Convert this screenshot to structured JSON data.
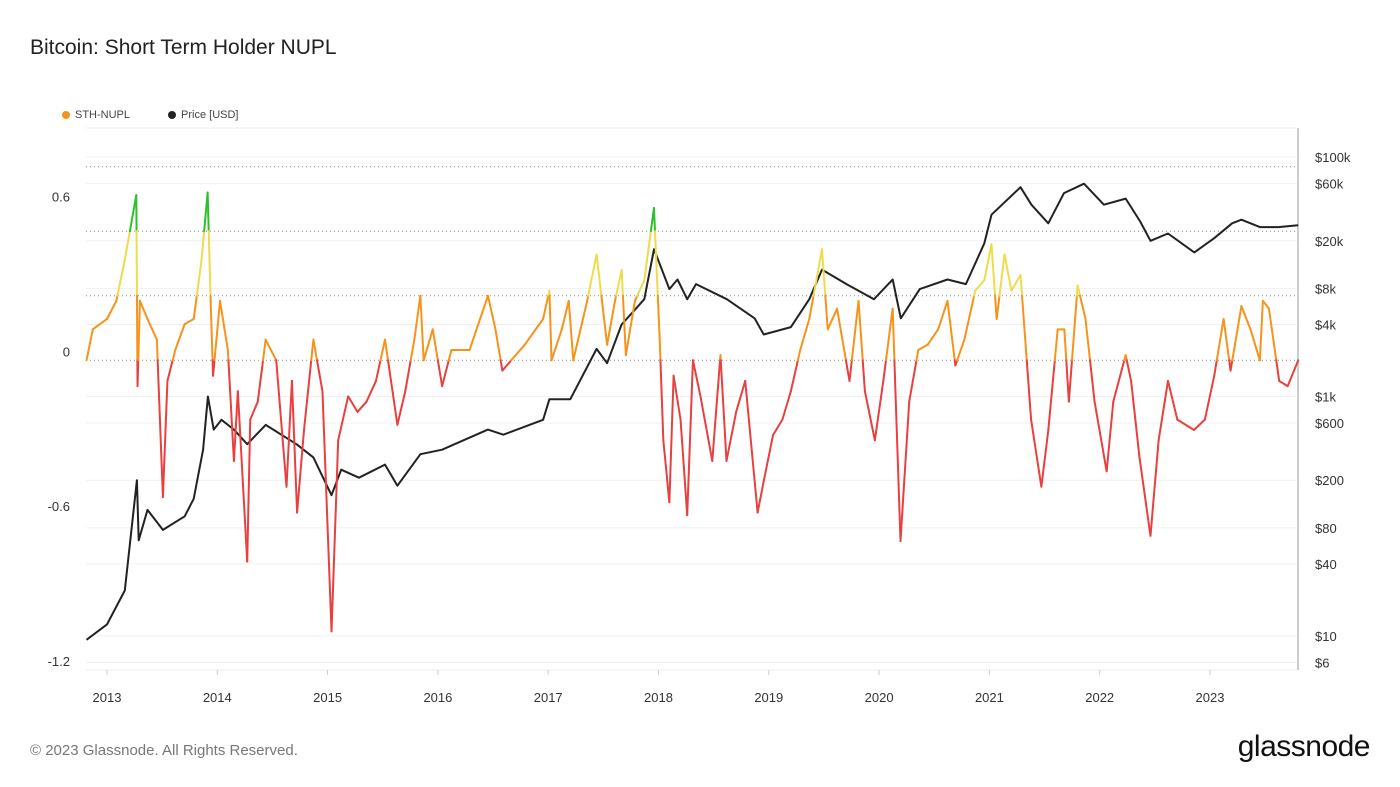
{
  "title": "Bitcoin: Short Term Holder NUPL",
  "footer": "© 2023 Glassnode. All Rights Reserved.",
  "logo": "glassnode",
  "legend": [
    {
      "label": "STH-NUPL",
      "color": "#f7931a"
    },
    {
      "label": "Price [USD]",
      "color": "#222222"
    }
  ],
  "chart_data": {
    "type": "line",
    "title": "Bitcoin: Short Term Holder NUPL",
    "x_ticks": [
      "2013",
      "2014",
      "2015",
      "2016",
      "2017",
      "2018",
      "2019",
      "2020",
      "2021",
      "2022",
      "2023"
    ],
    "y_left": {
      "ticks": [
        0.6,
        0,
        -0.6,
        -1.2
      ],
      "tick_labels": [
        "0.6",
        "0",
        "-0.6",
        "-1.2"
      ],
      "range": [
        -1.2,
        0.9
      ],
      "reference_lines": [
        0.75,
        0.5,
        0.25,
        0
      ]
    },
    "y_right": {
      "scale": "log",
      "ticks": [
        100000,
        60000,
        20000,
        8000,
        4000,
        1000,
        600,
        200,
        80,
        40,
        10,
        6
      ],
      "tick_labels": [
        "$100k",
        "$60k",
        "$20k",
        "$8k",
        "$4k",
        "$1k",
        "$600",
        "$200",
        "$80",
        "$40",
        "$10",
        "$6"
      ],
      "range": [
        5.2,
        175000
      ]
    },
    "x_range": [
      "2012-10-20",
      "2023-10-20"
    ],
    "grid": true,
    "legend_position": "top-left",
    "nupl_colors": {
      "below_0": "#e8403e",
      "0_to_0.25": "#f7931a",
      "0.25_to_0.5": "#eedc4c",
      "above_0.5": "#2cc12a"
    },
    "series": [
      {
        "name": "STH-NUPL",
        "axis": "left",
        "points": [
          [
            "2012-10-25",
            0.0
          ],
          [
            "2012-11-15",
            0.12
          ],
          [
            "2013-01-01",
            0.16
          ],
          [
            "2013-02-01",
            0.23
          ],
          [
            "2013-03-01",
            0.39
          ],
          [
            "2013-04-08",
            0.64
          ],
          [
            "2013-04-12",
            -0.1
          ],
          [
            "2013-04-20",
            0.23
          ],
          [
            "2013-05-15",
            0.16
          ],
          [
            "2013-06-15",
            0.08
          ],
          [
            "2013-07-05",
            -0.53
          ],
          [
            "2013-07-20",
            -0.08
          ],
          [
            "2013-08-15",
            0.04
          ],
          [
            "2013-09-15",
            0.14
          ],
          [
            "2013-10-15",
            0.16
          ],
          [
            "2013-11-10",
            0.39
          ],
          [
            "2013-11-30",
            0.65
          ],
          [
            "2013-12-10",
            0.23
          ],
          [
            "2013-12-18",
            -0.06
          ],
          [
            "2014-01-10",
            0.23
          ],
          [
            "2014-02-05",
            0.04
          ],
          [
            "2014-02-25",
            -0.39
          ],
          [
            "2014-03-10",
            -0.12
          ],
          [
            "2014-04-10",
            -0.78
          ],
          [
            "2014-04-20",
            -0.23
          ],
          [
            "2014-05-15",
            -0.16
          ],
          [
            "2014-06-10",
            0.08
          ],
          [
            "2014-07-15",
            0.0
          ],
          [
            "2014-08-18",
            -0.49
          ],
          [
            "2014-09-05",
            -0.08
          ],
          [
            "2014-09-22",
            -0.59
          ],
          [
            "2014-10-15",
            -0.27
          ],
          [
            "2014-11-15",
            0.08
          ],
          [
            "2014-12-15",
            -0.12
          ],
          [
            "2015-01-14",
            -1.05
          ],
          [
            "2015-02-05",
            -0.31
          ],
          [
            "2015-03-10",
            -0.14
          ],
          [
            "2015-04-10",
            -0.2
          ],
          [
            "2015-05-10",
            -0.16
          ],
          [
            "2015-06-10",
            -0.08
          ],
          [
            "2015-07-10",
            0.08
          ],
          [
            "2015-08-20",
            -0.25
          ],
          [
            "2015-09-15",
            -0.12
          ],
          [
            "2015-10-15",
            0.08
          ],
          [
            "2015-11-04",
            0.25
          ],
          [
            "2015-11-15",
            0.0
          ],
          [
            "2015-12-15",
            0.12
          ],
          [
            "2016-01-15",
            -0.1
          ],
          [
            "2016-02-15",
            0.04
          ],
          [
            "2016-04-15",
            0.04
          ],
          [
            "2016-06-15",
            0.25
          ],
          [
            "2016-07-10",
            0.12
          ],
          [
            "2016-08-02",
            -0.04
          ],
          [
            "2016-09-15",
            0.02
          ],
          [
            "2016-10-15",
            0.06
          ],
          [
            "2016-12-15",
            0.16
          ],
          [
            "2017-01-05",
            0.27
          ],
          [
            "2017-01-12",
            0.0
          ],
          [
            "2017-02-15",
            0.12
          ],
          [
            "2017-03-10",
            0.23
          ],
          [
            "2017-03-25",
            0.0
          ],
          [
            "2017-05-10",
            0.23
          ],
          [
            "2017-06-10",
            0.41
          ],
          [
            "2017-07-15",
            0.06
          ],
          [
            "2017-08-10",
            0.23
          ],
          [
            "2017-09-01",
            0.35
          ],
          [
            "2017-09-15",
            0.02
          ],
          [
            "2017-10-15",
            0.23
          ],
          [
            "2017-11-15",
            0.31
          ],
          [
            "2017-12-17",
            0.59
          ],
          [
            "2018-01-05",
            0.08
          ],
          [
            "2018-01-17",
            -0.31
          ],
          [
            "2018-02-06",
            -0.55
          ],
          [
            "2018-02-20",
            -0.06
          ],
          [
            "2018-03-15",
            -0.23
          ],
          [
            "2018-04-06",
            -0.6
          ],
          [
            "2018-04-25",
            0.0
          ],
          [
            "2018-05-20",
            -0.14
          ],
          [
            "2018-06-28",
            -0.39
          ],
          [
            "2018-07-25",
            0.02
          ],
          [
            "2018-08-14",
            -0.39
          ],
          [
            "2018-09-15",
            -0.2
          ],
          [
            "2018-10-15",
            -0.08
          ],
          [
            "2018-11-25",
            -0.59
          ],
          [
            "2018-12-15",
            -0.47
          ],
          [
            "2019-01-15",
            -0.29
          ],
          [
            "2019-02-15",
            -0.23
          ],
          [
            "2019-03-15",
            -0.12
          ],
          [
            "2019-04-15",
            0.04
          ],
          [
            "2019-05-15",
            0.16
          ],
          [
            "2019-06-26",
            0.43
          ],
          [
            "2019-07-15",
            0.12
          ],
          [
            "2019-08-15",
            0.2
          ],
          [
            "2019-09-25",
            -0.08
          ],
          [
            "2019-10-25",
            0.23
          ],
          [
            "2019-11-15",
            -0.12
          ],
          [
            "2019-12-18",
            -0.31
          ],
          [
            "2020-01-15",
            -0.08
          ],
          [
            "2020-02-15",
            0.2
          ],
          [
            "2020-03-12",
            -0.7
          ],
          [
            "2020-04-10",
            -0.16
          ],
          [
            "2020-05-10",
            0.04
          ],
          [
            "2020-06-10",
            0.06
          ],
          [
            "2020-07-15",
            0.12
          ],
          [
            "2020-08-15",
            0.23
          ],
          [
            "2020-09-10",
            -0.02
          ],
          [
            "2020-10-10",
            0.08
          ],
          [
            "2020-11-15",
            0.27
          ],
          [
            "2020-12-15",
            0.31
          ],
          [
            "2021-01-08",
            0.45
          ],
          [
            "2021-01-25",
            0.16
          ],
          [
            "2021-02-20",
            0.41
          ],
          [
            "2021-03-15",
            0.27
          ],
          [
            "2021-04-14",
            0.33
          ],
          [
            "2021-05-19",
            -0.23
          ],
          [
            "2021-06-22",
            -0.49
          ],
          [
            "2021-07-15",
            -0.27
          ],
          [
            "2021-08-15",
            0.12
          ],
          [
            "2021-09-06",
            0.12
          ],
          [
            "2021-09-21",
            -0.16
          ],
          [
            "2021-10-20",
            0.29
          ],
          [
            "2021-11-15",
            0.16
          ],
          [
            "2021-12-15",
            -0.16
          ],
          [
            "2022-01-24",
            -0.43
          ],
          [
            "2022-02-15",
            -0.16
          ],
          [
            "2022-03-28",
            0.02
          ],
          [
            "2022-04-15",
            -0.08
          ],
          [
            "2022-05-12",
            -0.37
          ],
          [
            "2022-06-18",
            -0.68
          ],
          [
            "2022-07-15",
            -0.31
          ],
          [
            "2022-08-15",
            -0.08
          ],
          [
            "2022-09-15",
            -0.23
          ],
          [
            "2022-11-09",
            -0.27
          ],
          [
            "2022-12-15",
            -0.23
          ],
          [
            "2023-01-15",
            -0.06
          ],
          [
            "2023-02-15",
            0.16
          ],
          [
            "2023-03-10",
            -0.04
          ],
          [
            "2023-04-15",
            0.21
          ],
          [
            "2023-05-15",
            0.12
          ],
          [
            "2023-06-15",
            0.0
          ],
          [
            "2023-06-25",
            0.23
          ],
          [
            "2023-07-15",
            0.2
          ],
          [
            "2023-08-18",
            -0.08
          ],
          [
            "2023-09-15",
            -0.1
          ],
          [
            "2023-10-20",
            0.0
          ]
        ]
      },
      {
        "name": "Price [USD]",
        "axis": "right",
        "points": [
          [
            "2012-10-25",
            9.3
          ],
          [
            "2013-01-01",
            12.5
          ],
          [
            "2013-03-01",
            24
          ],
          [
            "2013-04-10",
            200
          ],
          [
            "2013-04-16",
            63
          ],
          [
            "2013-05-15",
            113
          ],
          [
            "2013-07-05",
            77
          ],
          [
            "2013-09-15",
            100
          ],
          [
            "2013-10-15",
            140
          ],
          [
            "2013-11-15",
            360
          ],
          [
            "2013-12-01",
            1000
          ],
          [
            "2013-12-20",
            530
          ],
          [
            "2014-01-15",
            640
          ],
          [
            "2014-02-25",
            530
          ],
          [
            "2014-04-10",
            400
          ],
          [
            "2014-06-10",
            580
          ],
          [
            "2014-09-20",
            400
          ],
          [
            "2014-11-15",
            310
          ],
          [
            "2015-01-14",
            150
          ],
          [
            "2015-02-15",
            245
          ],
          [
            "2015-04-15",
            210
          ],
          [
            "2015-07-10",
            270
          ],
          [
            "2015-08-20",
            180
          ],
          [
            "2015-11-04",
            330
          ],
          [
            "2016-01-15",
            360
          ],
          [
            "2016-06-15",
            530
          ],
          [
            "2016-08-05",
            480
          ],
          [
            "2016-12-15",
            640
          ],
          [
            "2017-01-05",
            950
          ],
          [
            "2017-03-15",
            950
          ],
          [
            "2017-06-10",
            2500
          ],
          [
            "2017-07-15",
            1900
          ],
          [
            "2017-09-01",
            4000
          ],
          [
            "2017-11-15",
            6500
          ],
          [
            "2017-12-17",
            17000
          ],
          [
            "2018-02-06",
            7900
          ],
          [
            "2018-03-05",
            9500
          ],
          [
            "2018-04-06",
            6500
          ],
          [
            "2018-05-05",
            8700
          ],
          [
            "2018-08-15",
            6500
          ],
          [
            "2018-11-15",
            4500
          ],
          [
            "2018-12-15",
            3300
          ],
          [
            "2019-03-15",
            3800
          ],
          [
            "2019-05-15",
            6500
          ],
          [
            "2019-06-26",
            11500
          ],
          [
            "2019-09-15",
            8700
          ],
          [
            "2019-12-15",
            6500
          ],
          [
            "2020-02-15",
            9500
          ],
          [
            "2020-03-13",
            4500
          ],
          [
            "2020-05-15",
            7900
          ],
          [
            "2020-08-15",
            9500
          ],
          [
            "2020-10-15",
            8700
          ],
          [
            "2020-12-15",
            19000
          ],
          [
            "2021-01-08",
            33000
          ],
          [
            "2021-04-14",
            56000
          ],
          [
            "2021-05-20",
            40000
          ],
          [
            "2021-07-15",
            28000
          ],
          [
            "2021-09-05",
            50000
          ],
          [
            "2021-11-10",
            60000
          ],
          [
            "2022-01-15",
            40000
          ],
          [
            "2022-03-28",
            45000
          ],
          [
            "2022-05-15",
            29000
          ],
          [
            "2022-06-18",
            20000
          ],
          [
            "2022-08-15",
            23000
          ],
          [
            "2022-11-10",
            16000
          ],
          [
            "2023-01-15",
            21000
          ],
          [
            "2023-03-15",
            28000
          ],
          [
            "2023-04-15",
            30000
          ],
          [
            "2023-06-15",
            26000
          ],
          [
            "2023-08-15",
            26000
          ],
          [
            "2023-10-20",
            27000
          ]
        ]
      }
    ]
  }
}
